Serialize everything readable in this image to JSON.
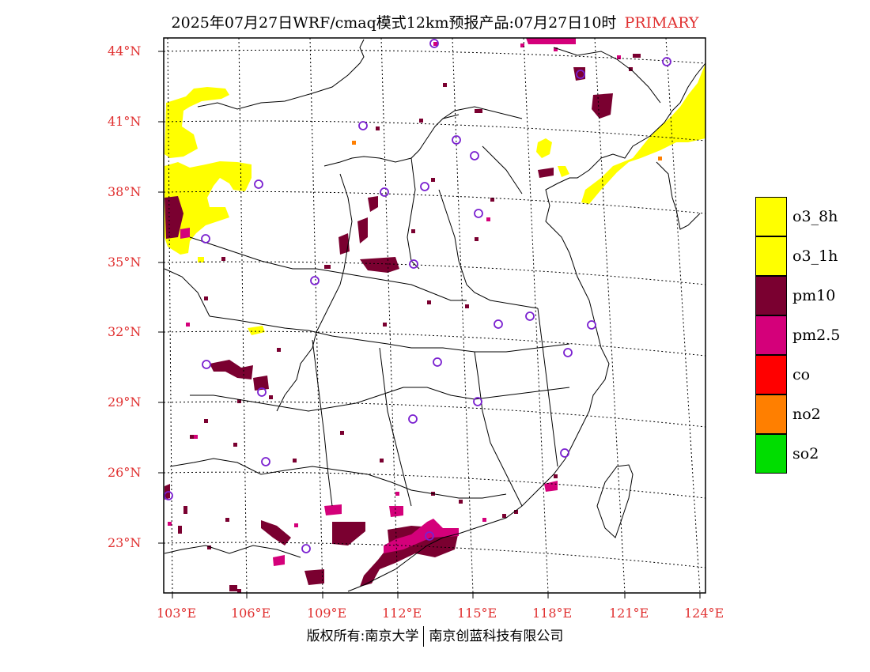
{
  "title": {
    "main": "2025年07月27日WRF/cmaq模式12km预报产品:07月27日10时",
    "tag": "PRIMARY"
  },
  "axes": {
    "lat_labels": [
      "44°N",
      "41°N",
      "38°N",
      "35°N",
      "32°N",
      "29°N",
      "26°N",
      "23°N"
    ],
    "lon_labels": [
      "103°E",
      "106°E",
      "109°E",
      "112°E",
      "115°E",
      "118°E",
      "121°E",
      "124°E"
    ],
    "label_color": "#e03030"
  },
  "legend": {
    "items": [
      {
        "label": "o3_8h",
        "color": "#ffff00"
      },
      {
        "label": "o3_1h",
        "color": "#ffff00"
      },
      {
        "label": "pm10",
        "color": "#7a0030"
      },
      {
        "label": "pm2.5",
        "color": "#d4007a"
      },
      {
        "label": "co",
        "color": "#ff0000"
      },
      {
        "label": "no2",
        "color": "#ff7f00"
      },
      {
        "label": "so2",
        "color": "#00dd00"
      }
    ]
  },
  "footer": {
    "left": "版权所有:南京大学",
    "right": "南京创蓝科技有限公司"
  },
  "colors": {
    "o3": "#ffff00",
    "pm10": "#7a0030",
    "pm25": "#d4007a",
    "no2": "#ff7f00",
    "station": "#7a20d0"
  }
}
